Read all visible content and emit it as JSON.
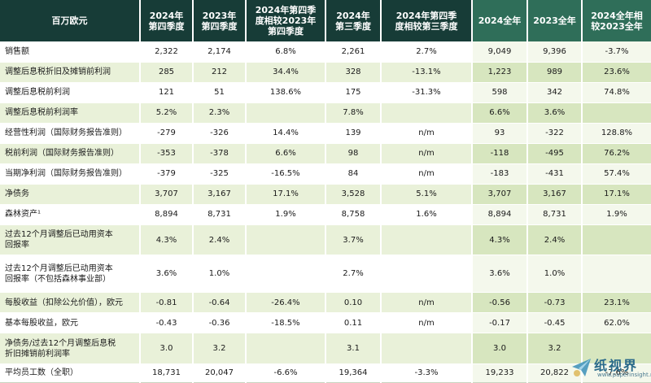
{
  "table": {
    "header": [
      "百万欧元",
      "2024年\n第四季度",
      "2023年\n第四季度",
      "2024年第四季\n度相较2023年\n第四季度",
      "2024年\n第三季度",
      "2024年第四季\n度相较第三季度",
      "2024全年",
      "2023全年",
      "2024全年相\n较2023全年"
    ],
    "rows": [
      [
        "销售额",
        "2,322",
        "2,174",
        "6.8%",
        "2,261",
        "2.7%",
        "9,049",
        "9,396",
        "-3.7%"
      ],
      [
        "调整后息税折旧及摊销前利润",
        "285",
        "212",
        "34.4%",
        "328",
        "-13.1%",
        "1,223",
        "989",
        "23.6%"
      ],
      [
        "调整后息税前利润",
        "121",
        "51",
        "138.6%",
        "175",
        "-31.3%",
        "598",
        "342",
        "74.8%"
      ],
      [
        "调整后息税前利润率",
        "5.2%",
        "2.3%",
        "",
        "7.8%",
        "",
        "6.6%",
        "3.6%",
        ""
      ],
      [
        "经营性利润（国际财务报告准则）",
        "-279",
        "-326",
        "14.4%",
        "139",
        "n/m",
        "93",
        "-322",
        "128.8%"
      ],
      [
        "税前利润（国际财务报告准则）",
        "-353",
        "-378",
        "6.6%",
        "98",
        "n/m",
        "-118",
        "-495",
        "76.2%"
      ],
      [
        "当期净利润（国际财务报告准则）",
        "-379",
        "-325",
        "-16.5%",
        "84",
        "n/m",
        "-183",
        "-431",
        "57.4%"
      ],
      [
        "净债务",
        "3,707",
        "3,167",
        "17.1%",
        "3,528",
        "5.1%",
        "3,707",
        "3,167",
        "17.1%"
      ],
      [
        "森林资产¹",
        "8,894",
        "8,731",
        "1.9%",
        "8,758",
        "1.6%",
        "8,894",
        "8,731",
        "1.9%"
      ],
      [
        "过去12个月调整后已动用资本\n回报率",
        "4.3%",
        "2.4%",
        "",
        "3.7%",
        "",
        "4.3%",
        "2.4%",
        ""
      ],
      [
        "过去12个月调整后已动用资本\n回报率（不包括森林事业部）",
        "3.6%",
        "1.0%",
        "",
        "2.7%",
        "",
        "3.6%",
        "1.0%",
        ""
      ],
      [
        "每股收益（扣除公允价值），欧元",
        "-0.81",
        "-0.64",
        "-26.4%",
        "0.10",
        "n/m",
        "-0.56",
        "-0.73",
        "23.1%"
      ],
      [
        "基本每股收益，欧元",
        "-0.43",
        "-0.36",
        "-18.5%",
        "0.11",
        "n/m",
        "-0.17",
        "-0.45",
        "62.0%"
      ],
      [
        "净债务/过去12个月调整后息税\n折旧摊销前利润率",
        "3.0",
        "3.2",
        "",
        "3.1",
        "",
        "3.0",
        "3.2",
        ""
      ],
      [
        "平均员工数（全职）",
        "18,731",
        "20,047",
        "-6.6%",
        "19,364",
        "-3.3%",
        "19,233",
        "20,822",
        "-7.6%"
      ]
    ]
  },
  "watermark": {
    "name": "纸视界",
    "url": "www.paperinsight.net",
    "icon": "paper-plane-icon"
  }
}
